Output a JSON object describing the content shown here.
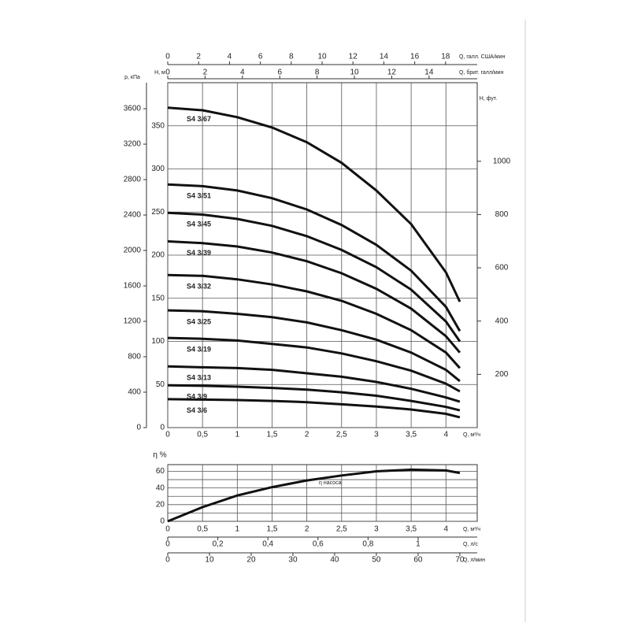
{
  "chart_data": [
    {
      "type": "line",
      "x_label": "Q, м³/ч",
      "y_label": "H, м",
      "p_label": "р, кПа",
      "y2_label": "H, фут.",
      "xlim": [
        0,
        4.45
      ],
      "xticks": [
        0,
        {
          "value": 0.5,
          "label": "0,5"
        },
        1,
        {
          "value": 1.5,
          "label": "1,5"
        },
        2,
        {
          "value": 2.5,
          "label": "2,5"
        },
        3,
        {
          "value": 3.5,
          "label": "3,5"
        },
        4
      ],
      "ylim": [
        0,
        400
      ],
      "yticks": [
        0,
        50,
        100,
        150,
        200,
        250,
        300,
        350
      ],
      "plim": [
        0,
        3894
      ],
      "pticks": [
        0,
        400,
        800,
        1200,
        1600,
        2000,
        2400,
        2800,
        3200,
        3600
      ],
      "y2lim": [
        0,
        1295
      ],
      "y2ticks": [
        200,
        400,
        600,
        800,
        1000
      ],
      "grid": true,
      "top_axes": [
        {
          "label": "Q, галл. США/мин",
          "lim": [
            0,
            20.05
          ],
          "ticks": [
            0,
            2,
            4,
            6,
            8,
            10,
            12,
            14,
            16,
            18
          ]
        },
        {
          "label": "Q, брит. галл/мин",
          "lim": [
            0,
            16.58
          ],
          "ticks": [
            0,
            2,
            4,
            6,
            8,
            10,
            12,
            14
          ]
        }
      ],
      "x": [
        0,
        0.5,
        1,
        1.5,
        2,
        2.5,
        3,
        3.5,
        4,
        4.2
      ],
      "series": [
        {
          "name": "S4 3/67",
          "color": "#111111",
          "values": [
            371,
            368,
            360,
            348,
            331,
            307,
            275,
            236,
            180,
            146
          ]
        },
        {
          "name": "S4 3/51",
          "color": "#111111",
          "values": [
            282,
            280,
            275,
            266,
            253,
            235,
            212,
            182,
            140,
            112
          ]
        },
        {
          "name": "S4 3/45",
          "color": "#111111",
          "values": [
            249,
            247,
            242,
            234,
            222,
            206,
            186,
            160,
            123,
            100
          ]
        },
        {
          "name": "S4 3/39",
          "color": "#111111",
          "values": [
            216,
            214,
            210,
            203,
            193,
            179,
            161,
            138,
            106,
            87
          ]
        },
        {
          "name": "S4 3/32",
          "color": "#111111",
          "values": [
            177,
            176,
            172,
            166,
            158,
            147,
            132,
            113,
            87,
            69
          ]
        },
        {
          "name": "S4 3/25",
          "color": "#111111",
          "values": [
            136,
            135,
            132,
            128,
            122,
            113,
            102,
            87,
            67,
            54
          ]
        },
        {
          "name": "S4 3/19",
          "color": "#111111",
          "values": [
            104,
            103,
            101,
            97,
            93,
            86,
            77,
            66,
            51,
            42
          ]
        },
        {
          "name": "S4 3/13",
          "color": "#111111",
          "values": [
            71,
            70,
            69,
            67,
            63,
            59,
            53,
            45,
            35,
            30
          ]
        },
        {
          "name": "S4 3/9",
          "color": "#111111",
          "values": [
            49,
            48.5,
            47.5,
            46,
            44,
            41,
            37,
            31,
            24,
            20
          ]
        },
        {
          "name": "S4 3/6",
          "color": "#111111",
          "values": [
            33,
            32.5,
            32,
            31,
            29.5,
            27,
            24.5,
            21,
            16,
            12
          ]
        }
      ]
    },
    {
      "type": "line",
      "y_label": "η %",
      "xlim": [
        0,
        4.45
      ],
      "ylim": [
        0,
        68
      ],
      "yticks": [
        0,
        20,
        40,
        60
      ],
      "minor_yticks": [
        10,
        30,
        50
      ],
      "grid": true,
      "bottom_axes": [
        {
          "label": "Q, м³/ч",
          "lim": [
            0,
            4.45
          ],
          "ticks": [
            0,
            {
              "value": 0.5,
              "label": "0,5"
            },
            1,
            {
              "value": 1.5,
              "label": "1,5"
            },
            2,
            {
              "value": 2.5,
              "label": "2,5"
            },
            3,
            {
              "value": 3.5,
              "label": "3,5"
            },
            4
          ]
        },
        {
          "label": "Q, л/с",
          "lim": [
            0,
            1.236
          ],
          "ticks": [
            0,
            {
              "value": 0.2,
              "label": "0,2"
            },
            {
              "value": 0.4,
              "label": "0,4"
            },
            {
              "value": 0.6,
              "label": "0,6"
            },
            {
              "value": 0.8,
              "label": "0,8"
            },
            1
          ]
        },
        {
          "label": "Q, л/мин",
          "lim": [
            0,
            74.17
          ],
          "ticks": [
            0,
            10,
            20,
            30,
            40,
            50,
            60,
            70
          ]
        }
      ],
      "x": [
        0,
        0.5,
        1,
        1.5,
        2,
        2.5,
        3,
        3.5,
        4,
        4.2
      ],
      "series": [
        {
          "name": "η насоса",
          "color": "#111111",
          "values": [
            0,
            17,
            31,
            41,
            49,
            55,
            60,
            62,
            61,
            58
          ]
        }
      ]
    }
  ]
}
